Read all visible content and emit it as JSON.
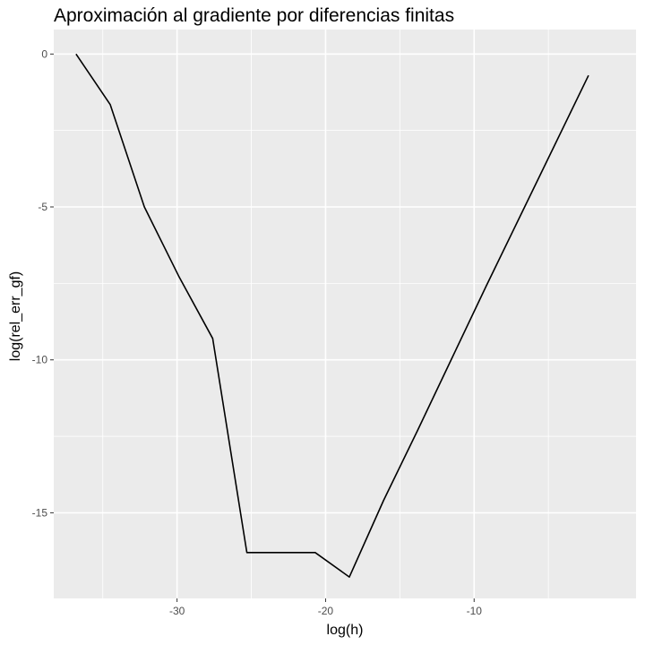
{
  "chart_data": {
    "type": "line",
    "title": "Aproximación al gradiente por diferencias finitas",
    "xlabel": "log(h)",
    "ylabel": "log(rel_err_gf)",
    "xlim": [
      -38.3,
      0.9
    ],
    "ylim": [
      -17.8,
      0.8
    ],
    "x_ticks": [
      -30,
      -20,
      -10
    ],
    "y_ticks": [
      0,
      -5,
      -10,
      -15
    ],
    "x_tick_labels": [
      "-30",
      "-20",
      "-10"
    ],
    "y_tick_labels": [
      "0",
      "-5",
      "-10",
      "-15"
    ],
    "grid": true,
    "line_color": "#000000",
    "panel_background": "#ebebeb",
    "series": [
      {
        "x": [
          -36.8,
          -34.5,
          -32.2,
          -29.9,
          -27.6,
          -25.3,
          -23.0,
          -20.7,
          -18.4,
          -16.1,
          -13.8,
          -11.5,
          -9.2,
          -6.9,
          -4.6,
          -2.3
        ],
        "y": [
          0.0,
          -1.65,
          -5.0,
          -7.25,
          -9.3,
          -16.3,
          -16.3,
          -16.3,
          -17.1,
          -14.6,
          -12.3,
          -9.95,
          -7.6,
          -5.3,
          -3.0,
          -0.7
        ]
      }
    ]
  }
}
